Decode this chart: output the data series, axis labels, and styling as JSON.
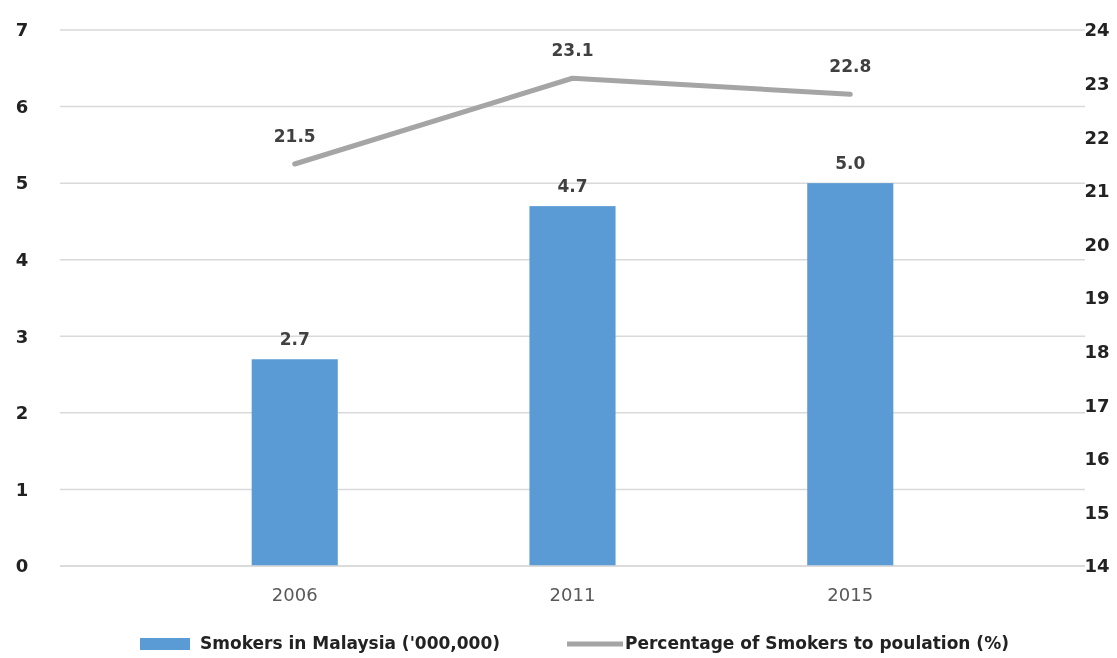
{
  "chart_data": {
    "type": "bar",
    "categories": [
      "2006",
      "2011",
      "2015"
    ],
    "series": [
      {
        "name": "Smokers in Malaysia ('000,000)",
        "color": "#5b9bd5",
        "values": [
          2.7,
          4.7,
          5.0
        ],
        "value_labels": [
          "2.7",
          "4.7",
          "5.0"
        ]
      },
      {
        "name": "Percentage of Smokers to poulation (%)",
        "type": "line",
        "axis": "y2",
        "color": "#a5a5a5",
        "values": [
          21.5,
          23.1,
          22.8
        ],
        "value_labels": [
          "21.5",
          "23.1",
          "22.8"
        ]
      }
    ],
    "ylim": [
      0,
      7
    ],
    "yticks": [
      0,
      1,
      2,
      3,
      4,
      5,
      6,
      7
    ],
    "y2lim": [
      14,
      24
    ],
    "y2ticks": [
      14,
      15,
      16,
      17,
      18,
      19,
      20,
      21,
      22,
      23,
      24
    ],
    "grid": "y",
    "legend": "bottom",
    "marker": "none",
    "line_style": "solid"
  }
}
